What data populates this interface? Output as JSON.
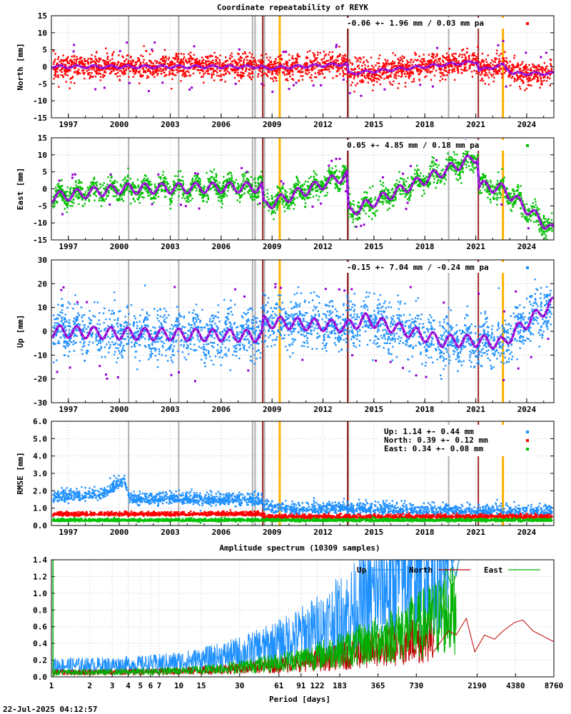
{
  "title": "Coordinate repeatability of REYK",
  "timestamp": "22-Jul-2025 04:12:57",
  "colors": {
    "north": "#ff0000",
    "east": "#00c000",
    "up": "#1e90ff",
    "model": "#9400d3",
    "outlier": "#9400d3",
    "vline_gray": "#a0a0a0",
    "vline_darkred": "#8b0000",
    "vline_orange": "#ffb000"
  },
  "events": {
    "gray": [
      2000.55,
      2003.5,
      2007.85,
      2008.0,
      2008.55,
      2013.5,
      2019.4
    ],
    "darkred": [
      2008.45,
      2013.45,
      2021.15
    ],
    "orange": [
      2009.45,
      2022.6
    ]
  },
  "chart_data": [
    {
      "type": "scatter",
      "name": "north-panel",
      "title": "Coordinate repeatability of REYK",
      "ylabel": "North [mm]",
      "xlim": [
        1996.0,
        2025.6
      ],
      "ylim": [
        -15,
        15
      ],
      "yticks": [
        "15",
        "10",
        "5",
        "0",
        "-5",
        "-10",
        "-15"
      ],
      "xticks": [
        "1997",
        "2000",
        "2003",
        "2006",
        "2009",
        "2012",
        "2015",
        "2018",
        "2021",
        "2024"
      ],
      "stats": "-0.06 +- 1.96 mm /  0.03 mm pa",
      "scatter": 1.8,
      "amp": 0.4,
      "series_label": "North",
      "trend": [
        [
          1996.0,
          0.0
        ],
        [
          2008.4,
          0.0
        ],
        [
          2008.5,
          -0.5
        ],
        [
          2013.4,
          0.8
        ],
        [
          2013.5,
          -2.0
        ],
        [
          2021.1,
          1.5
        ],
        [
          2021.2,
          -1.0
        ],
        [
          2022.6,
          0.5
        ],
        [
          2023.2,
          -2.0
        ],
        [
          2025.6,
          -2.0
        ]
      ]
    },
    {
      "type": "scatter",
      "name": "east-panel",
      "ylabel": "East [mm]",
      "xlim": [
        1996.0,
        2025.6
      ],
      "ylim": [
        -15,
        15
      ],
      "yticks": [
        "15",
        "10",
        "5",
        "0",
        "-5",
        "-10",
        "-15"
      ],
      "xticks": [
        "1997",
        "2000",
        "2003",
        "2006",
        "2009",
        "2012",
        "2015",
        "2018",
        "2021",
        "2024"
      ],
      "stats": " 0.05 +- 4.85 mm /  0.18 mm pa",
      "scatter": 1.6,
      "amp": 1.5,
      "series_label": "East",
      "trend": [
        [
          1996.0,
          -2.5
        ],
        [
          2000.0,
          0.0
        ],
        [
          2008.4,
          0.5
        ],
        [
          2008.5,
          -5.0
        ],
        [
          2013.4,
          4.0
        ],
        [
          2013.5,
          -7.0
        ],
        [
          2021.1,
          9.5
        ],
        [
          2021.2,
          1.0
        ],
        [
          2022.6,
          0.0
        ],
        [
          2025.6,
          -12.5
        ]
      ]
    },
    {
      "type": "scatter",
      "name": "up-panel",
      "ylabel": "Up [mm]",
      "xlim": [
        1996.0,
        2025.6
      ],
      "ylim": [
        -30,
        30
      ],
      "yticks": [
        "30",
        "20",
        "10",
        "0",
        "-10",
        "-20",
        "-30"
      ],
      "xticks": [
        "1997",
        "2000",
        "2003",
        "2006",
        "2009",
        "2012",
        "2015",
        "2018",
        "2021",
        "2024"
      ],
      "stats": "-0.15 +- 7.04 mm / -0.24 mm pa",
      "scatter": 5.0,
      "amp": 2.5,
      "series_label": "Up",
      "trend": [
        [
          1996.0,
          0.0
        ],
        [
          2000.5,
          -1.0
        ],
        [
          2008.4,
          -2.0
        ],
        [
          2008.5,
          4.0
        ],
        [
          2013.4,
          2.0
        ],
        [
          2014.5,
          5.0
        ],
        [
          2019.0,
          -4.0
        ],
        [
          2021.1,
          -4.0
        ],
        [
          2022.6,
          -5.0
        ],
        [
          2023.5,
          1.0
        ],
        [
          2025.6,
          12.0
        ]
      ]
    },
    {
      "type": "scatter",
      "name": "rmse-panel",
      "ylabel": "RMSE [mm]",
      "xlim": [
        1996.0,
        2025.6
      ],
      "ylim": [
        0.0,
        6.0
      ],
      "yticks": [
        "6.0",
        "5.0",
        "4.0",
        "3.0",
        "2.0",
        "1.0",
        "0.0"
      ],
      "xticks": [
        "1997",
        "2000",
        "2003",
        "2006",
        "2009",
        "2012",
        "2015",
        "2018",
        "2021",
        "2024"
      ],
      "legend": [
        {
          "label": "Up:    1.14 +- 0.44 mm",
          "color": "#1e90ff"
        },
        {
          "label": "North:  0.39 +- 0.12 mm",
          "color": "#ff0000"
        },
        {
          "label": "East:   0.34 +- 0.08 mm",
          "color": "#00c000"
        }
      ],
      "up_trend": [
        [
          1996.0,
          1.6
        ],
        [
          1999.0,
          1.8
        ],
        [
          2000.3,
          2.6
        ],
        [
          2000.6,
          1.5
        ],
        [
          2004.0,
          1.5
        ],
        [
          2008.4,
          1.4
        ],
        [
          2008.5,
          1.0
        ],
        [
          2013.5,
          0.95
        ],
        [
          2020.0,
          0.8
        ],
        [
          2025.6,
          0.8
        ]
      ],
      "north_level": 0.5,
      "east_level": 0.3
    },
    {
      "type": "line",
      "name": "spectrum-panel",
      "title": "Amplitude spectrum (10309 samples)",
      "xlabel": "Period [days]",
      "xscale": "log",
      "xlim": [
        1,
        8760
      ],
      "ylim": [
        0.0,
        1.4
      ],
      "yticks": [
        "1.4",
        "1.2",
        "1.0",
        "0.8",
        "0.6",
        "0.4",
        "0.2",
        "0.0"
      ],
      "xticks": [
        {
          "v": 1,
          "t": "1"
        },
        {
          "v": 2,
          "t": "2"
        },
        {
          "v": 3,
          "t": "3"
        },
        {
          "v": 4,
          "t": "4"
        },
        {
          "v": 5,
          "t": "5"
        },
        {
          "v": 6,
          "t": "6"
        },
        {
          "v": 7,
          "t": "7"
        },
        {
          "v": 10,
          "t": "10"
        },
        {
          "v": 15,
          "t": "15"
        },
        {
          "v": 30,
          "t": "30"
        },
        {
          "v": 61,
          "t": "61"
        },
        {
          "v": 91,
          "t": "91"
        },
        {
          "v": 122,
          "t": "122"
        },
        {
          "v": 183,
          "t": "183"
        },
        {
          "v": 365,
          "t": "365"
        },
        {
          "v": 730,
          "t": "730"
        },
        {
          "v": 2190,
          "t": "2190"
        },
        {
          "v": 4380,
          "t": "4380"
        },
        {
          "v": 8760,
          "t": "8760"
        }
      ],
      "series": [
        {
          "name": "Up",
          "color": "#1e90ff"
        },
        {
          "name": "North",
          "color": "#c00000"
        },
        {
          "name": "East",
          "color": "#00b000"
        }
      ],
      "north_tail": [
        [
          1000,
          0.3
        ],
        [
          1300,
          0.55
        ],
        [
          1500,
          0.5
        ],
        [
          1800,
          0.7
        ],
        [
          2100,
          0.3
        ],
        [
          2500,
          0.5
        ],
        [
          3000,
          0.45
        ],
        [
          3500,
          0.55
        ],
        [
          4300,
          0.65
        ],
        [
          5000,
          0.68
        ],
        [
          6000,
          0.55
        ],
        [
          8760,
          0.42
        ]
      ]
    }
  ]
}
